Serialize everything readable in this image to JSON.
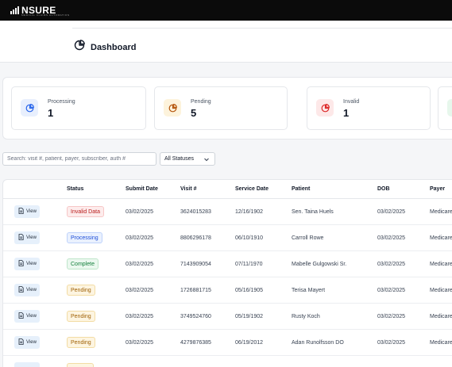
{
  "brand": {
    "name": "NSURE",
    "tagline": "MEDICAL CLAIMS AUTOMATION"
  },
  "header": {
    "title": "Dashboard",
    "icon": "pie-chart-icon"
  },
  "stats": [
    {
      "label": "Processing",
      "value": "1",
      "icon": "pie-chart-icon",
      "color": "#2563eb",
      "bg": "#e8effd"
    },
    {
      "label": "Pending",
      "value": "5",
      "icon": "pie-chart-icon",
      "color": "#b45309",
      "bg": "#fdf3dc"
    },
    {
      "label": "Invalid",
      "value": "1",
      "icon": "pie-chart-icon",
      "color": "#dc2626",
      "bg": "#fde8e8"
    }
  ],
  "filters": {
    "search_placeholder": "Search: visit #, patient, payer, subscriber, auth #",
    "status_selected": "All Statuses"
  },
  "table": {
    "columns": [
      "Status",
      "Submit Date",
      "Visit #",
      "Service Date",
      "Patient",
      "DOB",
      "Payer"
    ],
    "view_label": "View",
    "rows": [
      {
        "status": "Invalid Data",
        "submit": "03/02/2025",
        "visit": "3624015283",
        "service": "12/16/1902",
        "patient": "Sen. Taina Huels",
        "dob": "03/02/2025",
        "payer": "Medicare"
      },
      {
        "status": "Processing",
        "submit": "03/02/2025",
        "visit": "8806296178",
        "service": "06/10/1910",
        "patient": "Carroll Rowe",
        "dob": "03/02/2025",
        "payer": "Medicare"
      },
      {
        "status": "Complete",
        "submit": "03/02/2025",
        "visit": "7143909054",
        "service": "07/11/1970",
        "patient": "Mabelle Gulgowski Sr.",
        "dob": "03/02/2025",
        "payer": "Medicare"
      },
      {
        "status": "Pending",
        "submit": "03/02/2025",
        "visit": "1726881715",
        "service": "05/16/1905",
        "patient": "Terisa Mayert",
        "dob": "03/02/2025",
        "payer": "Medicare"
      },
      {
        "status": "Pending",
        "submit": "03/02/2025",
        "visit": "3749524760",
        "service": "05/19/1902",
        "patient": "Rusty Koch",
        "dob": "03/02/2025",
        "payer": "Medicare"
      },
      {
        "status": "Pending",
        "submit": "03/02/2025",
        "visit": "4279876385",
        "service": "06/19/2012",
        "patient": "Adan Runolfsson DO",
        "dob": "03/02/2025",
        "payer": "Medicare"
      }
    ]
  },
  "status_colors": {
    "Invalid Data": {
      "fg": "#b91c1c",
      "bg": "#fdecec",
      "border": "#f7c7c7"
    },
    "Processing": {
      "fg": "#1d4ed8",
      "bg": "#eaf1fe",
      "border": "#bfd3fb"
    },
    "Complete": {
      "fg": "#15803d",
      "bg": "#ebf8ef",
      "border": "#bfe6cb"
    },
    "Pending": {
      "fg": "#a16207",
      "bg": "#fdf5e1",
      "border": "#f3dca4"
    }
  }
}
